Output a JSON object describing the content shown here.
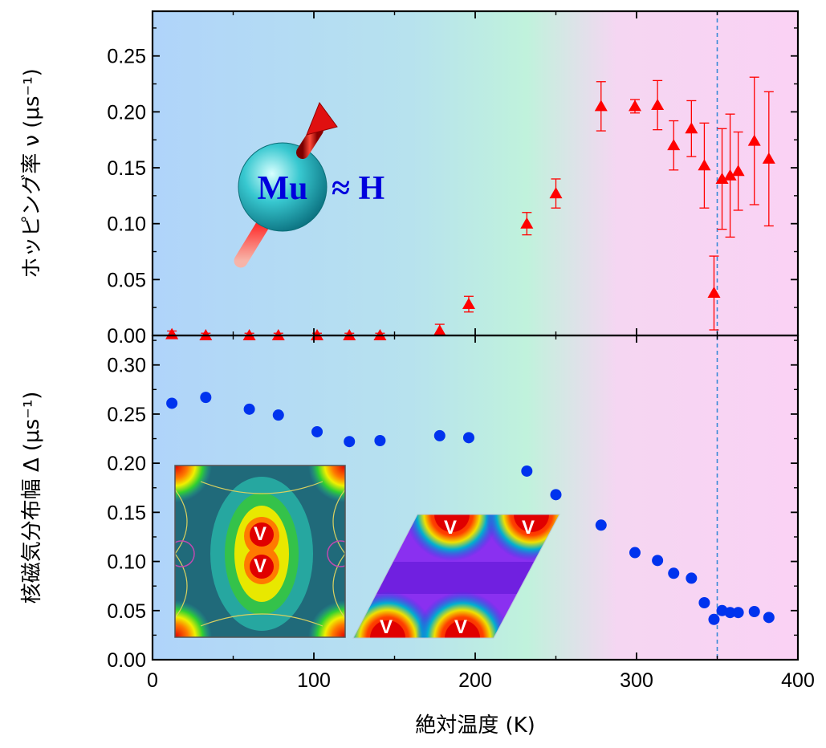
{
  "chart_data": [
    {
      "type": "scatter",
      "panel": "top",
      "ylabel": "ホッピング率 ν (μs⁻¹)",
      "ylim": [
        0,
        0.29
      ],
      "yticks": [
        "0.00",
        "0.05",
        "0.10",
        "0.15",
        "0.20",
        "0.25"
      ],
      "marker": "triangle",
      "color": "#ff0000",
      "series": [
        {
          "x": [
            12,
            33,
            60,
            78,
            102,
            122,
            141,
            178,
            196,
            232,
            250,
            278,
            299,
            313,
            323,
            334,
            342,
            348,
            353,
            358,
            363,
            373,
            382
          ],
          "y": [
            0.001,
            0.0,
            0.0,
            0.0,
            0.0,
            0.0,
            0.0,
            0.004,
            0.028,
            0.1,
            0.127,
            0.205,
            0.205,
            0.206,
            0.17,
            0.185,
            0.152,
            0.038,
            0.14,
            0.143,
            0.147,
            0.174,
            0.158
          ],
          "err": [
            0.003,
            0.002,
            0.002,
            0.002,
            0.002,
            0.002,
            0.002,
            0.006,
            0.007,
            0.01,
            0.013,
            0.022,
            0.006,
            0.022,
            0.022,
            0.025,
            0.038,
            0.033,
            0.045,
            0.055,
            0.035,
            0.057,
            0.06
          ]
        }
      ]
    },
    {
      "type": "scatter",
      "panel": "bottom",
      "ylabel": "核磁気分布幅 Δ (μs⁻¹)",
      "xlabel": "絶対温度 (K)",
      "xlim": [
        0,
        400
      ],
      "ylim": [
        0,
        0.33
      ],
      "xticks": [
        "0",
        "100",
        "200",
        "300",
        "400"
      ],
      "yticks": [
        "0.00",
        "0.05",
        "0.10",
        "0.15",
        "0.20",
        "0.25",
        "0.30"
      ],
      "marker": "circle",
      "color": "#0033ee",
      "series": [
        {
          "x": [
            12,
            33,
            60,
            78,
            102,
            122,
            141,
            178,
            196,
            232,
            250,
            278,
            299,
            313,
            323,
            334,
            342,
            348,
            353,
            358,
            363,
            373,
            382
          ],
          "y": [
            0.261,
            0.267,
            0.255,
            0.249,
            0.232,
            0.222,
            0.223,
            0.228,
            0.226,
            0.192,
            0.168,
            0.137,
            0.109,
            0.101,
            0.088,
            0.083,
            0.058,
            0.041,
            0.05,
            0.048,
            0.048,
            0.049,
            0.043
          ]
        }
      ]
    }
  ],
  "temperature_marker_K": 350,
  "background_gradient": [
    "#b0d4fa",
    "#c0f2dc",
    "#fad2f4"
  ],
  "inset": {
    "mu_label": "Mu",
    "approx_label": "≈ H",
    "vacancy_label": "V"
  }
}
